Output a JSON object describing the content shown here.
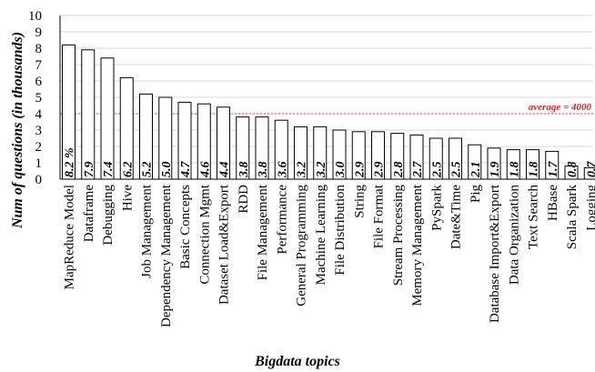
{
  "chart_data": {
    "type": "bar",
    "categories": [
      "MapReduce Model",
      "Dataframe",
      "Debugging",
      "Hive",
      "Job Management",
      "Dependency Management",
      "Basic Concepts",
      "Connection Mgmt",
      "Dataset Load&Export",
      "RDD",
      "File Management",
      "Performance",
      "General Programming",
      "Machine Learning",
      "File Distribution",
      "String",
      "File Format",
      "Stream Processing",
      "Memory Management",
      "PySpark",
      "Date&Time",
      "Pig",
      "Database Import&Export",
      "Data Organization",
      "Text Search",
      "HBase",
      "Scala Spark",
      "Logging"
    ],
    "values": [
      8.2,
      7.9,
      7.4,
      6.2,
      5.2,
      5.0,
      4.7,
      4.6,
      4.4,
      3.8,
      3.8,
      3.6,
      3.2,
      3.2,
      3.0,
      2.9,
      2.9,
      2.8,
      2.7,
      2.5,
      2.5,
      2.1,
      1.9,
      1.8,
      1.8,
      1.7,
      0.8,
      0.7
    ],
    "value_labels": [
      "8.2 %",
      "7.9",
      "7.4",
      "6.2",
      "5.2",
      "5.0",
      "4.7",
      "4.6",
      "4.4",
      "3.8",
      "3.8",
      "3.6",
      "3.2",
      "3.2",
      "3.0",
      "2.9",
      "2.9",
      "2.8",
      "2.7",
      "2.5",
      "2.5",
      "2.1",
      "1.9",
      "1.8",
      "1.8",
      "1.7",
      "0.8",
      "0.7"
    ],
    "xlabel": "Bigdata topics",
    "ylabel": "Num of questions (in thousands)",
    "ylim": [
      0,
      10
    ],
    "yticks": [
      0,
      1,
      2,
      3,
      4,
      5,
      6,
      7,
      8,
      9,
      10
    ],
    "grid": true,
    "average": {
      "value": 4,
      "label": "average = 4000",
      "color": "#e34a4a"
    }
  }
}
